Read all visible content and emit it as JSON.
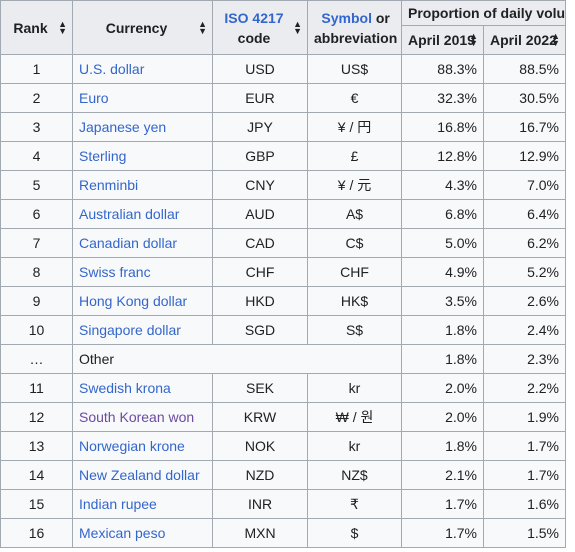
{
  "headers": {
    "rank": "Rank",
    "currency": "Currency",
    "iso_link": "ISO 4217",
    "iso_rest": "code",
    "symbol_link": "Symbol",
    "symbol_rest1": " or",
    "symbol_rest2": "abbreviation",
    "proportion": "Proportion of daily volume",
    "year1": "April 2019",
    "year2": "April 2022"
  },
  "icons": {
    "sort": "sort-updown-icon"
  },
  "colors": {
    "link": "#3366cc",
    "visited_link": "#6b4ba1",
    "header_bg": "#eaecf0",
    "cell_bg": "#f8f9fa",
    "border": "#a2a9b1"
  },
  "rows": [
    {
      "rank": "1",
      "currency": "U.S. dollar",
      "code": "USD",
      "symbol": "US$",
      "y2019": "88.3%",
      "y2022": "88.5%"
    },
    {
      "rank": "2",
      "currency": "Euro",
      "code": "EUR",
      "symbol": "€",
      "y2019": "32.3%",
      "y2022": "30.5%"
    },
    {
      "rank": "3",
      "currency": "Japanese yen",
      "code": "JPY",
      "symbol": "¥ / 円",
      "y2019": "16.8%",
      "y2022": "16.7%"
    },
    {
      "rank": "4",
      "currency": "Sterling",
      "code": "GBP",
      "symbol": "£",
      "y2019": "12.8%",
      "y2022": "12.9%"
    },
    {
      "rank": "5",
      "currency": "Renminbi",
      "code": "CNY",
      "symbol": "¥ / 元",
      "y2019": "4.3%",
      "y2022": "7.0%"
    },
    {
      "rank": "6",
      "currency": "Australian dollar",
      "code": "AUD",
      "symbol": "A$",
      "y2019": "6.8%",
      "y2022": "6.4%"
    },
    {
      "rank": "7",
      "currency": "Canadian dollar",
      "code": "CAD",
      "symbol": "C$",
      "y2019": "5.0%",
      "y2022": "6.2%"
    },
    {
      "rank": "8",
      "currency": "Swiss franc",
      "code": "CHF",
      "symbol": "CHF",
      "y2019": "4.9%",
      "y2022": "5.2%"
    },
    {
      "rank": "9",
      "currency": "Hong Kong dollar",
      "code": "HKD",
      "symbol": "HK$",
      "y2019": "3.5%",
      "y2022": "2.6%"
    },
    {
      "rank": "10",
      "currency": "Singapore dollar",
      "code": "SGD",
      "symbol": "S$",
      "y2019": "1.8%",
      "y2022": "2.4%"
    }
  ],
  "other_row": {
    "rank": "…",
    "label": "Other",
    "y2019": "1.8%",
    "y2022": "2.3%"
  },
  "rows2": [
    {
      "rank": "11",
      "currency": "Swedish krona",
      "code": "SEK",
      "symbol": "kr",
      "y2019": "2.0%",
      "y2022": "2.2%"
    },
    {
      "rank": "12",
      "currency": "South Korean won",
      "code": "KRW",
      "symbol": "₩ / 원",
      "y2019": "2.0%",
      "y2022": "1.9%"
    },
    {
      "rank": "13",
      "currency": "Norwegian krone",
      "code": "NOK",
      "symbol": "kr",
      "y2019": "1.8%",
      "y2022": "1.7%"
    },
    {
      "rank": "14",
      "currency": "New Zealand dollar",
      "code": "NZD",
      "symbol": "NZ$",
      "y2019": "2.1%",
      "y2022": "1.7%"
    },
    {
      "rank": "15",
      "currency": "Indian rupee",
      "code": "INR",
      "symbol": "₹",
      "y2019": "1.7%",
      "y2022": "1.6%"
    },
    {
      "rank": "16",
      "currency": "Mexican peso",
      "code": "MXN",
      "symbol": "$",
      "y2019": "1.7%",
      "y2022": "1.5%"
    }
  ]
}
